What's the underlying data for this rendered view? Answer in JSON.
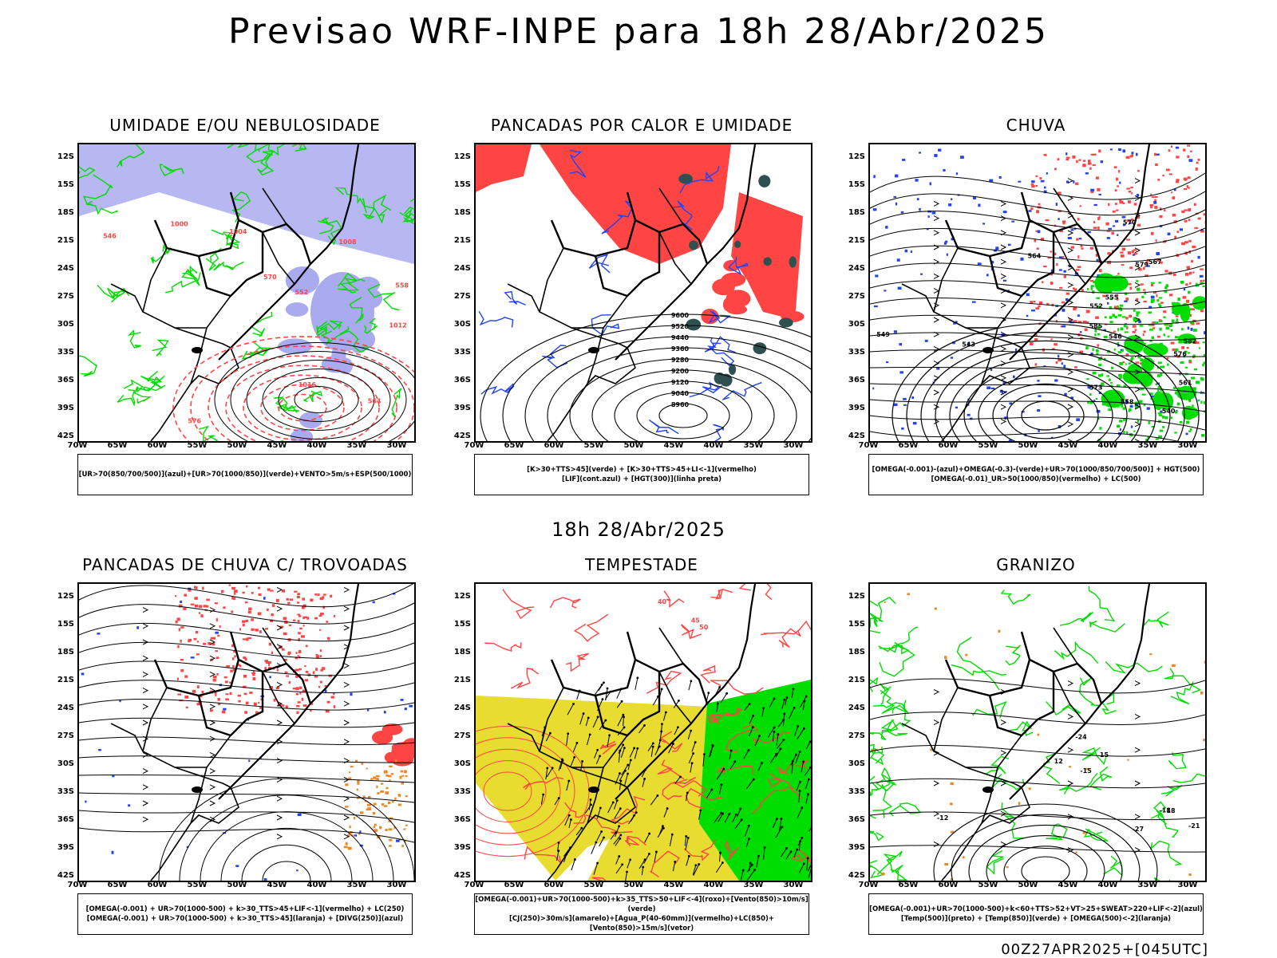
{
  "main_title": "Previsao WRF-INPE  para 18h 28/Abr/2025",
  "mid_title": "18h 28/Abr/2025",
  "footer": "00Z27APR2025+[045UTC]",
  "lat_labels": [
    "12S",
    "15S",
    "18S",
    "21S",
    "24S",
    "27S",
    "30S",
    "33S",
    "36S",
    "39S",
    "42S"
  ],
  "lon_labels": [
    "70W",
    "65W",
    "60W",
    "55W",
    "50W",
    "45W",
    "40W",
    "35W",
    "30W"
  ],
  "panels": [
    {
      "title": "UMIDADE E/OU NEBULOSIDADE",
      "legend": [
        "[UR>70(850/700/500)](azul)+[UR>70(1000/850)](verde)+VENTO>5m/s+ESP(500/1000)"
      ],
      "contour_labels": [
        "1012",
        "1016",
        "1008",
        "1004",
        "1000",
        "576",
        "570",
        "564",
        "558",
        "552",
        "546"
      ]
    },
    {
      "title": "PANCADAS POR CALOR E UMIDADE",
      "legend": [
        "[K>30+TTS>45](verde) + [K>30+TTS>45+LI<-1](vermelho)",
        "[LIF](cont.azul) + [HGT(300)](linha preta)"
      ],
      "contour_labels": [
        "9600",
        "9520",
        "9440",
        "9360",
        "9280",
        "9200",
        "9120",
        "9040",
        "8960"
      ]
    },
    {
      "title": "CHUVA",
      "legend": [
        "[OMEGA(-0.001)-(azul)+OMEGA(-0.3)-(verde)+UR>70(1000/850/700/500)] + HGT(500)",
        "[OMEGA(-0.01)_UR>50(1000/850)(vermelho) + LC(500)"
      ],
      "contour_labels": [
        "585",
        "582",
        "579",
        "576",
        "573",
        "570",
        "567",
        "564",
        "561",
        "558",
        "555",
        "552",
        "549",
        "546",
        "543",
        "540"
      ]
    },
    {
      "title": "PANCADAS DE CHUVA C/ TROVOADAS",
      "legend": [
        "[OMEGA(-0.001) + UR>70(1000-500) + k>30_TTS>45+LIF<-1](vermelho) + LC(250)",
        "[OMEGA(-0.001) + UR>70(1000-500) + k>30_TTS>45](laranja) + [DIVG(250)](azul)"
      ],
      "contour_labels": []
    },
    {
      "title": "TEMPESTADE",
      "legend": [
        "[OMEGA(-0.001)+UR>70(1000-500)+k>35_TTS>50+LIF<-4](roxo)+[Vento(850)>10m/s](verde)",
        "[CJ(250)>30m/s](amarelo)+[Agua_P(40-60mm)](vermelho)+LC(850)+[Vento(850)>15m/s](vetor)"
      ],
      "contour_labels": [
        "50",
        "45",
        "40"
      ]
    },
    {
      "title": "GRANIZO",
      "legend": [
        "[OMEGA(-0.001)+UR>70(1000-500)+k<60+TTS>52+VT>25+SWEAT>220+LIF<-2](azul)",
        "[Temp(500)](preto) + [Temp(850)](verde) + [OMEGA(500)<-2](laranja)"
      ],
      "contour_labels": [
        "-12",
        "-15",
        "-18",
        "-21",
        "-24",
        "-27",
        "12",
        "15",
        "18"
      ]
    }
  ],
  "colors": {
    "blue_fill": "#aaaaee",
    "green": "#00dd00",
    "red": "#ff4444",
    "dark_teal": "#2f5050",
    "yellow": "#e8dc30",
    "orange": "#ee8822",
    "blue": "#2244ee"
  }
}
